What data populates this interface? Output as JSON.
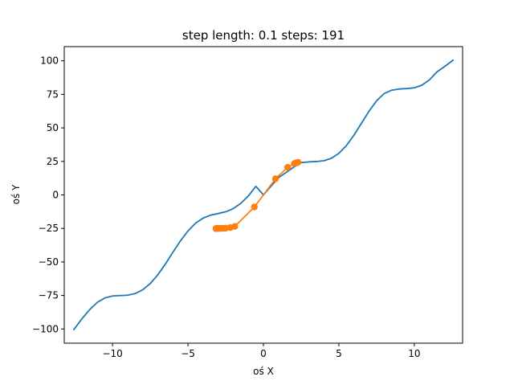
{
  "chart_data": {
    "type": "line",
    "title": "step length: 0.1 steps: 191",
    "xlabel": "oś X",
    "ylabel": "oś Y",
    "xlim": [
      -13.2,
      13.2
    ],
    "ylim": [
      -110.6,
      110.6
    ],
    "xticks": [
      -10,
      -5,
      0,
      5,
      10
    ],
    "xtick_labels": [
      "−10",
      "−5",
      "0",
      "5",
      "10"
    ],
    "yticks": [
      -100,
      -75,
      -50,
      -25,
      0,
      25,
      50,
      75,
      100
    ],
    "ytick_labels": [
      "−100",
      "−75",
      "−50",
      "−25",
      "0",
      "25",
      "50",
      "75",
      "100"
    ],
    "grid": false,
    "colors": {
      "curve": "#1f77b4",
      "path": "#ff7f0e"
    },
    "series": [
      {
        "kind": "line",
        "color": "#1f77b4",
        "x": [
          -12.57,
          -12.0,
          -11.5,
          -11.0,
          -10.5,
          -10.0,
          -9.5,
          -9.0,
          -8.5,
          -8.0,
          -7.5,
          -7.0,
          -6.5,
          -6.0,
          -5.5,
          -5.0,
          -4.5,
          -4.0,
          -3.5,
          -3.0,
          -2.5,
          -2.0,
          -1.5,
          -1.0,
          -0.5,
          0.0,
          0.5,
          1.0,
          1.5,
          2.0,
          2.5,
          3.0,
          3.5,
          4.0,
          4.5,
          5.0,
          5.5,
          6.0,
          6.5,
          7.0,
          7.5,
          8.0,
          8.5,
          9.0,
          9.5,
          10.0,
          10.5,
          11.0,
          11.5,
          12.0,
          12.57
        ],
        "y": [
          -100.5,
          -92.0,
          -85.4,
          -80.1,
          -76.8,
          -75.4,
          -75.1,
          -74.8,
          -73.6,
          -70.8,
          -66.1,
          -59.6,
          -51.6,
          -42.8,
          -34.3,
          -26.9,
          -21.1,
          -17.3,
          -15.1,
          -13.9,
          -12.6,
          -10.2,
          -6.3,
          -0.8,
          6.4,
          0.0,
          6.4,
          12.9,
          16.7,
          20.7,
          24.1,
          24.6,
          24.9,
          25.5,
          27.3,
          31.0,
          36.8,
          44.6,
          53.5,
          62.4,
          70.2,
          75.6,
          78.1,
          79.0,
          79.3,
          79.9,
          81.8,
          85.8,
          91.7,
          95.7,
          100.5
        ]
      },
      {
        "kind": "line-markers",
        "color": "#ff7f0e",
        "x": [
          -3.15,
          -3.1,
          -3.05,
          -3.0,
          -2.9,
          -2.8,
          -2.7,
          -2.5,
          -2.2,
          -1.9,
          -0.6,
          0.8,
          1.6,
          2.05,
          2.15,
          2.25,
          2.3
        ],
        "y": [
          -25.1,
          -25.1,
          -25.0,
          -25.0,
          -25.0,
          -25.0,
          -24.9,
          -24.8,
          -24.4,
          -23.5,
          -9.0,
          12.0,
          20.6,
          23.4,
          23.8,
          24.1,
          24.3
        ]
      }
    ]
  }
}
